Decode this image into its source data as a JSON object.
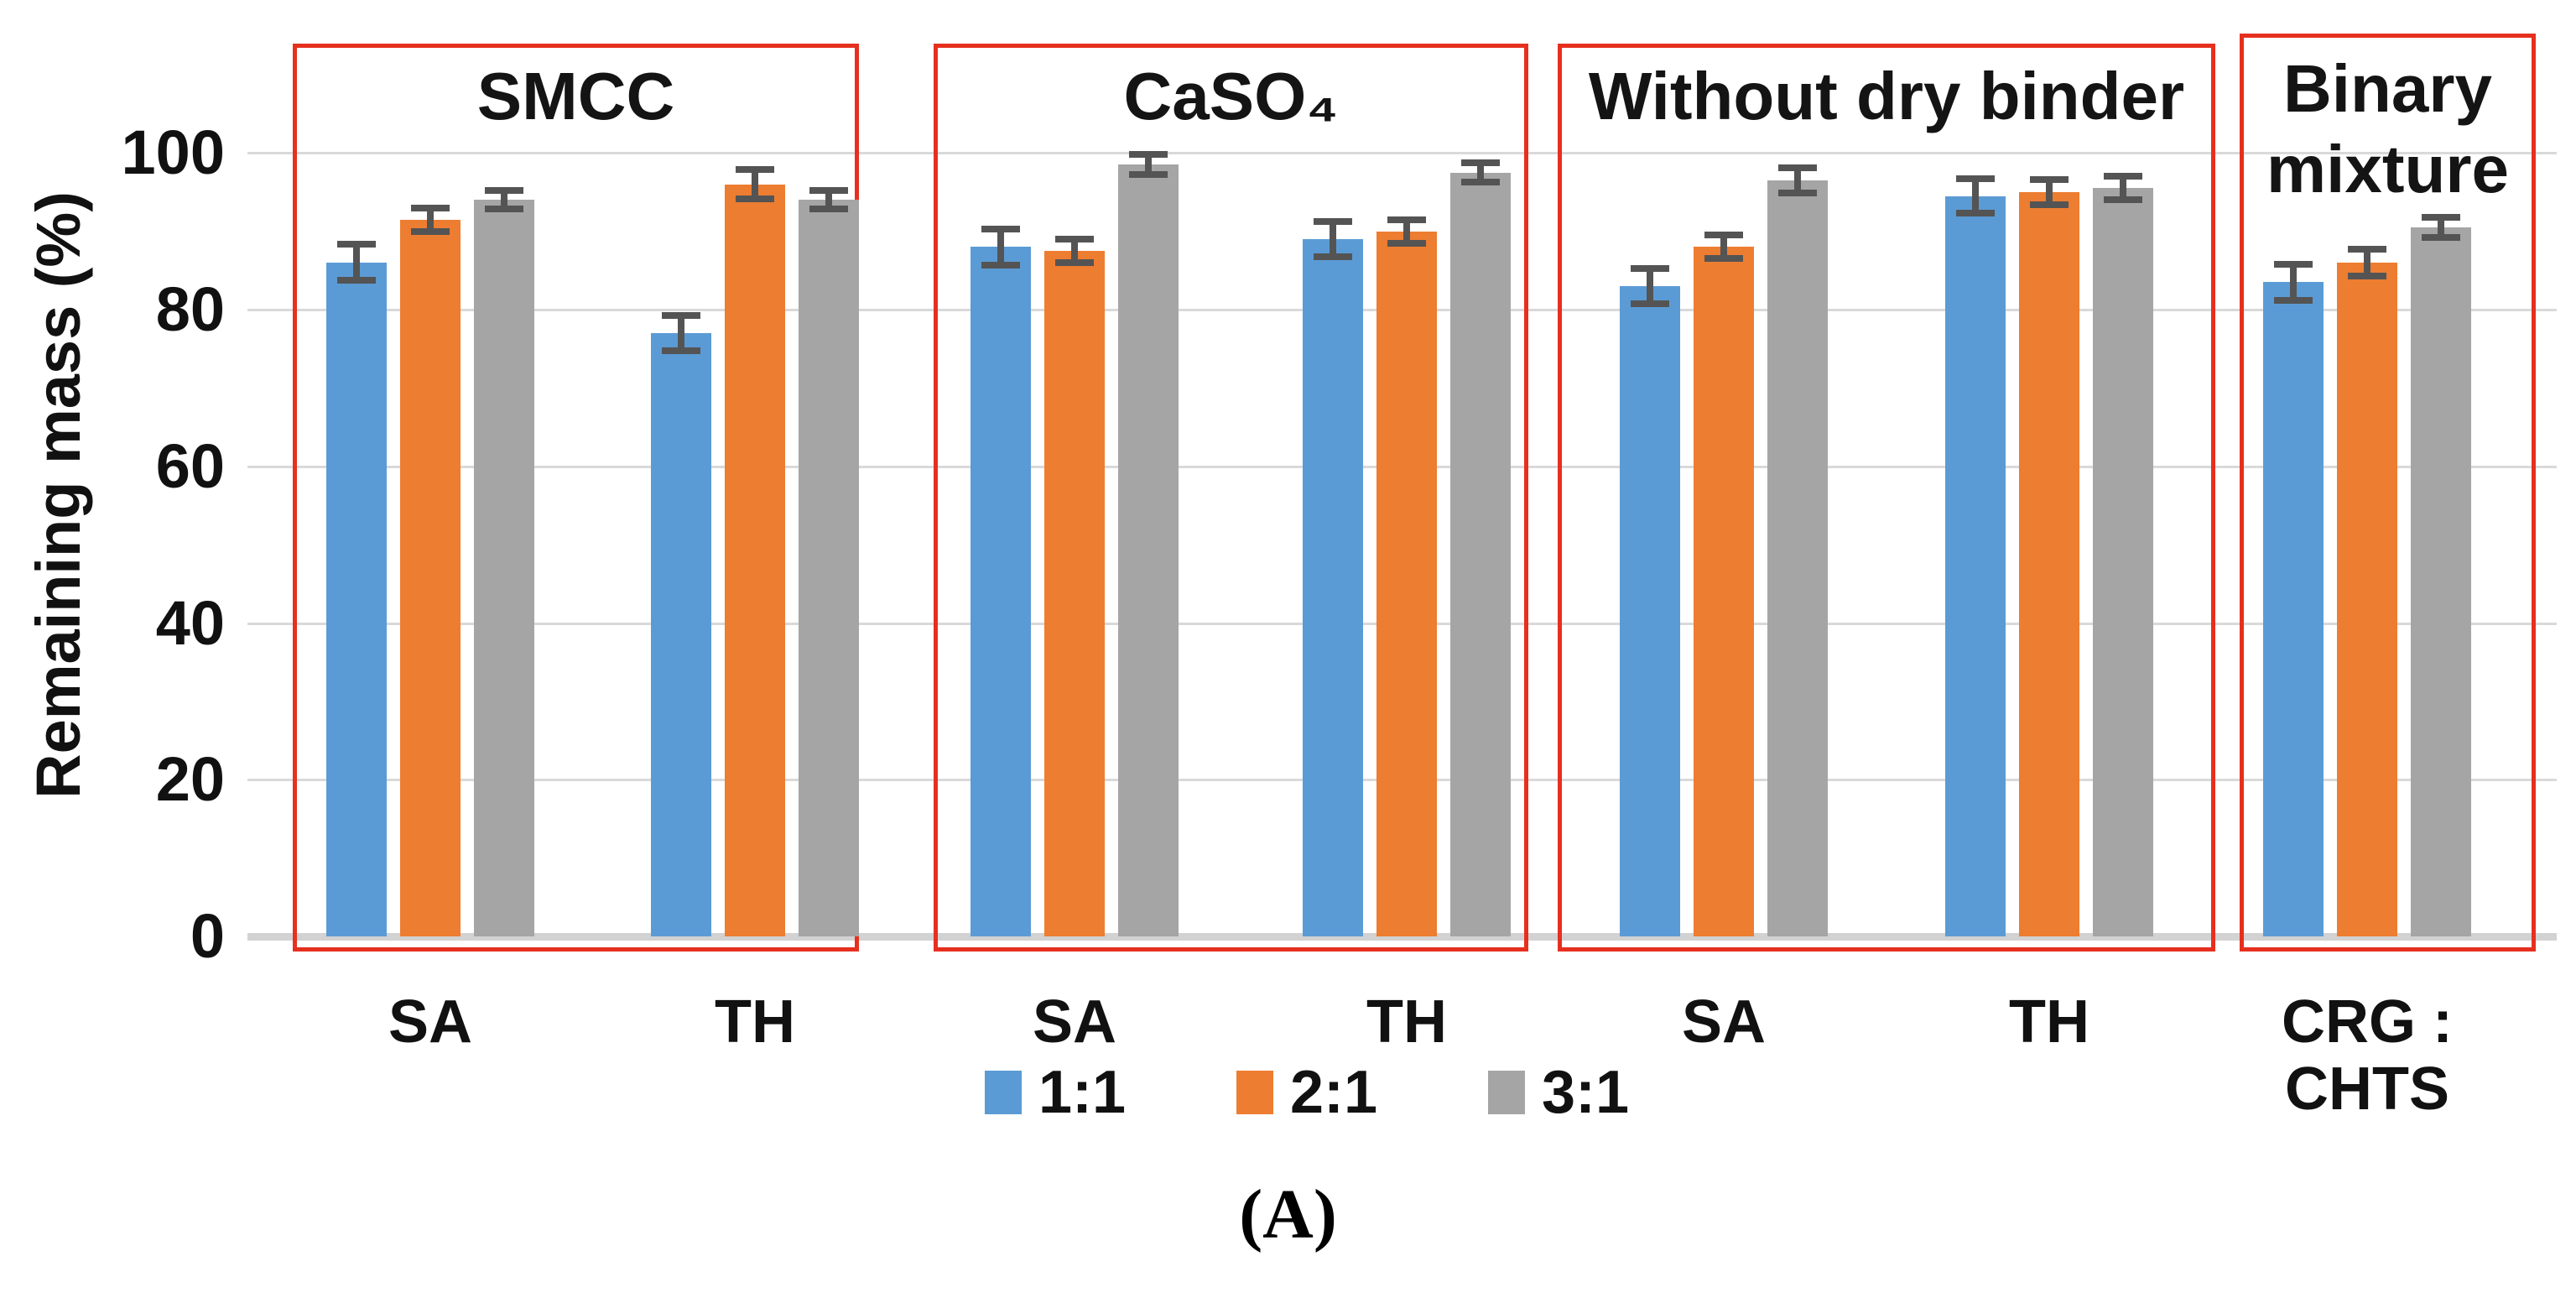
{
  "chart_data": {
    "type": "bar",
    "title": "",
    "xlabel": "",
    "ylabel": "Remaining mass (%)",
    "ylim": [
      0,
      100
    ],
    "yticks": [
      0,
      20,
      40,
      60,
      80,
      100
    ],
    "grid": "horizontal",
    "legend_position": "bottom",
    "legend": [
      {
        "label": "1:1",
        "color": "#5B9BD5"
      },
      {
        "label": "2:1",
        "color": "#ED7D31"
      },
      {
        "label": "3:1",
        "color": "#A5A5A5"
      }
    ],
    "series_note": "three ratio series (1:1, 2:1, 3:1) per category, error bars = ± values below",
    "groups": [
      {
        "title_lines": [
          "SMCC"
        ],
        "categories": [
          {
            "label": "SA",
            "values": [
              86,
              91.5,
              94
            ],
            "errors": [
              2.3,
              1.5,
              1.2
            ]
          },
          {
            "label": "TH",
            "values": [
              77,
              96,
              94
            ],
            "errors": [
              2.2,
              1.9,
              1.2
            ]
          }
        ]
      },
      {
        "title_lines": [
          "CaSO₄"
        ],
        "categories": [
          {
            "label": "SA",
            "values": [
              88,
              87.5,
              98.5
            ],
            "errors": [
              2.3,
              1.5,
              1.3
            ]
          },
          {
            "label": "TH",
            "values": [
              89,
              90,
              97.5
            ],
            "errors": [
              2.2,
              1.5,
              1.2
            ]
          }
        ]
      },
      {
        "title_lines": [
          "Without dry binder"
        ],
        "categories": [
          {
            "label": "SA",
            "values": [
              83,
              88,
              96.5
            ],
            "errors": [
              2.3,
              1.5,
              1.6
            ]
          },
          {
            "label": "TH",
            "values": [
              94.5,
              95,
              95.5
            ],
            "errors": [
              2.2,
              1.6,
              1.5
            ]
          }
        ]
      },
      {
        "title_lines": [
          "Binary",
          "mixture"
        ],
        "categories": [
          {
            "label": "CRG : CHTS",
            "values": [
              83.5,
              86,
              90.5
            ],
            "errors": [
              2.3,
              1.7,
              1.3
            ]
          }
        ]
      }
    ],
    "caption": "(A)"
  }
}
